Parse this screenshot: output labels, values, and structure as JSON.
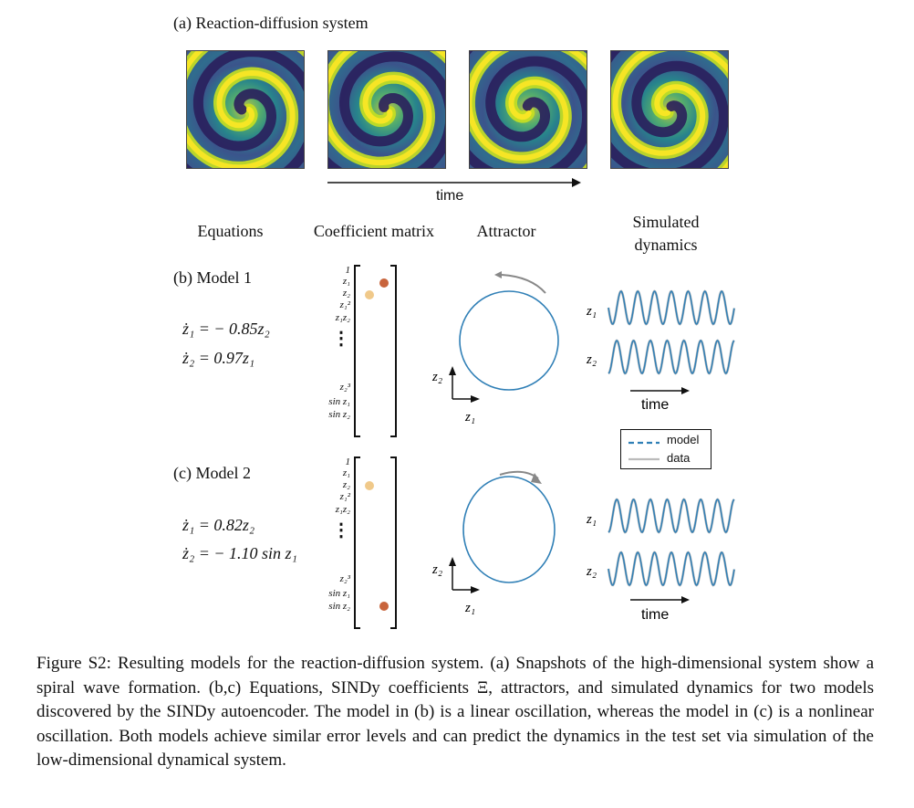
{
  "panel_a": {
    "title": "(a) Reaction-diffusion system",
    "time_label": "time",
    "snapshots": [
      {
        "name": "snapshot-1",
        "angle": 0
      },
      {
        "name": "snapshot-2",
        "angle": 40
      },
      {
        "name": "snapshot-3",
        "angle": 80
      },
      {
        "name": "snapshot-4",
        "angle": 120
      }
    ]
  },
  "columns": {
    "equations": "Equations",
    "coefficient_matrix": "Coefficient matrix",
    "attractor": "Attractor",
    "simulated_line1": "Simulated",
    "simulated_line2": "dynamics"
  },
  "library_terms": [
    "1",
    "z₁",
    "z₂",
    "z₁²",
    "z₁z₂",
    "⋮",
    "z₂³",
    "sin z₁",
    "sin z₂"
  ],
  "model1": {
    "label": "(b) Model 1",
    "eq1": "ż₁ = − 0.85z₂",
    "eq2": "ż₂ = 0.97z₁",
    "axis_x": "z₁",
    "axis_y": "z₂",
    "series_z1": "z₁",
    "series_z2": "z₂",
    "time_label": "time"
  },
  "model2": {
    "label": "(c) Model 2",
    "eq1": "ż₁ = 0.82z₂",
    "eq2": "ż₂ = − 1.10 sin z₁",
    "axis_x": "z₁",
    "axis_y": "z₂",
    "series_z1": "z₁",
    "series_z2": "z₂",
    "time_label": "time"
  },
  "legend": {
    "model": "model",
    "data": "data"
  },
  "colors": {
    "trajectory": "#2f7fb6",
    "coef_light": "#f0c98a",
    "coef_dark": "#c8643c",
    "arrow_gray": "#888888"
  },
  "caption": "Figure S2: Resulting models for the reaction-diffusion system. (a) Snapshots of the high-dimensional system show a spiral wave formation. (b,c) Equations, SINDy coefficients Ξ, attractors, and simulated dynamics for two models discovered by the SINDy autoencoder. The model in (b) is a linear oscillation, whereas the model in (c) is a nonlinear oscillation. Both models achieve similar error levels and can predict the dynamics in the test set via simulation of the low-dimensional dynamical system."
}
